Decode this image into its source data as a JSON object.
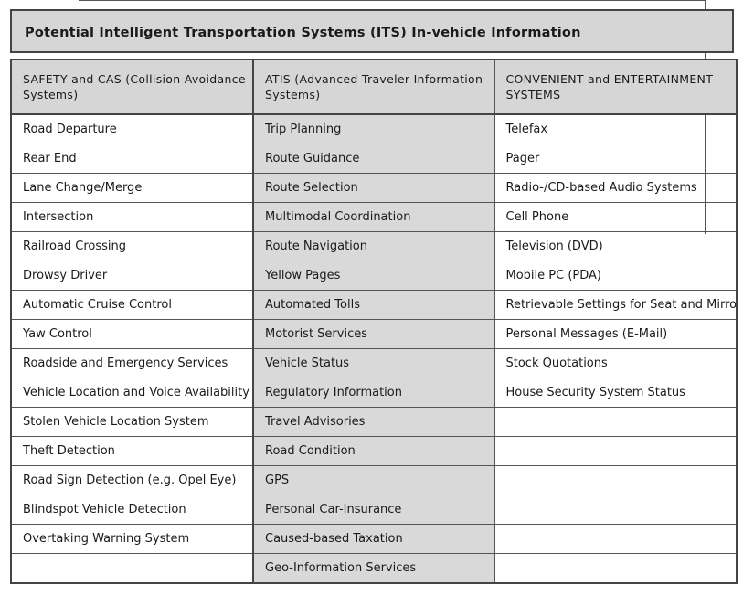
{
  "title": "Potential Intelligent Transportation Systems (ITS) In-vehicle Information",
  "headers": {
    "safety": "SAFETY  and CAS (Collision Avoidance Systems)",
    "atis": "ATIS (Advanced Traveler Information Systems)",
    "convenient": "CONVENIENT and ENTERTAINMENT SYSTEMS"
  },
  "rows": [
    [
      "Road Departure",
      "Trip Planning",
      "Telefax"
    ],
    [
      "Rear End",
      "Route Guidance",
      "Pager"
    ],
    [
      "Lane Change/Merge",
      "Route Selection",
      "Radio-/CD-based Audio Systems"
    ],
    [
      "Intersection",
      "Multimodal Coordination",
      "Cell Phone"
    ],
    [
      "Railroad Crossing",
      "Route Navigation",
      "Television (DVD)"
    ],
    [
      "Drowsy Driver",
      "Yellow Pages",
      "Mobile PC (PDA)"
    ],
    [
      "Automatic Cruise Control",
      "Automated Tolls",
      "Retrievable Settings for Seat and Mirrors"
    ],
    [
      "Yaw Control",
      "Motorist Services",
      "Personal Messages (E-Mail)"
    ],
    [
      "Roadside and Emergency Services",
      "Vehicle Status",
      "Stock Quotations"
    ],
    [
      "Vehicle Location and Voice Availability",
      "Regulatory Information",
      "House Security System Status"
    ],
    [
      "Stolen Vehicle Location System",
      "Travel Advisories",
      ""
    ],
    [
      "Theft Detection",
      "Road Condition",
      ""
    ],
    [
      "Road Sign Detection (e.g. Opel Eye)",
      "GPS",
      ""
    ],
    [
      "Blindspot Vehicle Detection",
      "Personal Car-Insurance",
      ""
    ],
    [
      "Overtaking Warning System",
      "Caused-based Taxation",
      ""
    ],
    [
      "",
      "Geo-Information Services",
      ""
    ]
  ]
}
